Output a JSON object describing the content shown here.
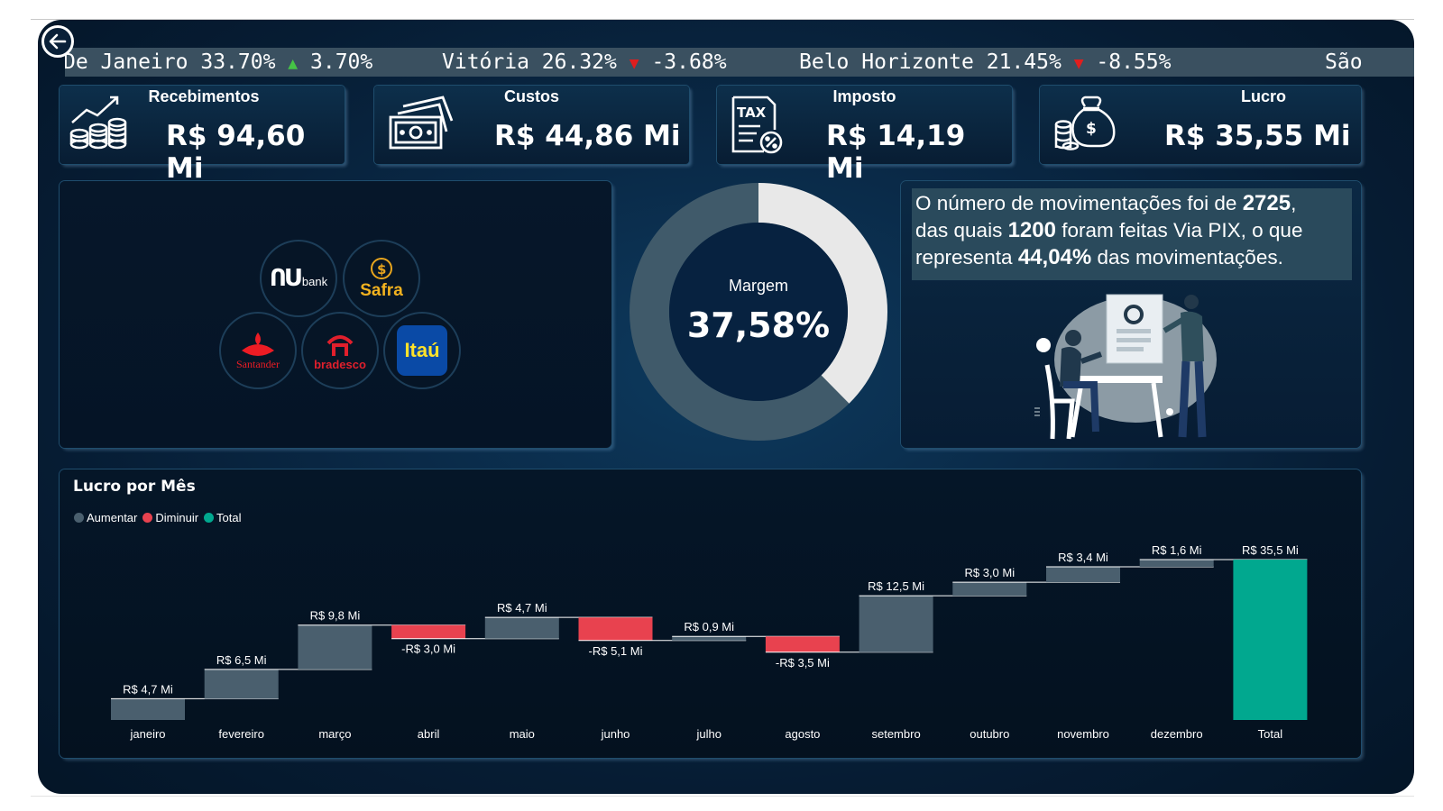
{
  "ticker": [
    {
      "city": "De Janeiro",
      "share": "33.70%",
      "dir": "up",
      "change": "3.70%"
    },
    {
      "city": "Vitória",
      "share": "26.32%",
      "dir": "down",
      "change": "-3.68%"
    },
    {
      "city": "Belo Horizonte",
      "share": "21.45%",
      "dir": "down",
      "change": "-8.55%"
    },
    {
      "city": "São",
      "share": "",
      "dir": "",
      "change": ""
    }
  ],
  "kpis": [
    {
      "title": "Recebimentos",
      "value": "R$ 94,60 Mi",
      "icon": "growth-coins-icon"
    },
    {
      "title": "Custos",
      "value": "R$ 44,86 Mi",
      "icon": "banknote-icon"
    },
    {
      "title": "Imposto",
      "value": "R$ 14,19 Mi",
      "icon": "tax-document-icon"
    },
    {
      "title": "Lucro",
      "value": "R$ 35,55 Mi",
      "icon": "money-bag-icon"
    }
  ],
  "banks": [
    "bank",
    "Safra",
    "Santander",
    "bradesco",
    "Itaú"
  ],
  "margin": {
    "label": "Margem",
    "value": "37,58%",
    "fraction": 0.3758
  },
  "movements": {
    "t1": "O número de movimentações foi de ",
    "total": "2725",
    "t2": ",",
    "t3": "das quais ",
    "pix": "1200",
    "t4": " foram feitas Via PIX, o que",
    "t5": "representa ",
    "pct": "44,04%",
    "t6": " das movimentações."
  },
  "chart_data": {
    "type": "waterfall",
    "title": "Lucro por Mês",
    "legend": [
      "Aumentar",
      "Diminuir",
      "Total"
    ],
    "colors": {
      "Aumentar": "#4a5f6e",
      "Diminuir": "#e8424f",
      "Total": "#01a88f"
    },
    "categories": [
      "janeiro",
      "fevereiro",
      "março",
      "abril",
      "maio",
      "junho",
      "julho",
      "agosto",
      "setembro",
      "outubro",
      "novembro",
      "dezembro",
      "Total"
    ],
    "values": [
      4.7,
      6.5,
      9.8,
      -3.0,
      4.7,
      -5.1,
      0.9,
      -3.5,
      12.5,
      3.0,
      3.4,
      1.6,
      35.5
    ],
    "labels": [
      "R$ 4,7 Mi",
      "R$ 6,5 Mi",
      "R$ 9,8 Mi",
      "-R$ 3,0 Mi",
      "R$ 4,7 Mi",
      "-R$ 5,1 Mi",
      "R$ 0,9 Mi",
      "-R$ 3,5 Mi",
      "R$ 12,5 Mi",
      "R$ 3,0 Mi",
      "R$ 3,4 Mi",
      "R$ 1,6 Mi",
      "R$ 35,5 Mi"
    ],
    "legend_position": "top-left"
  }
}
